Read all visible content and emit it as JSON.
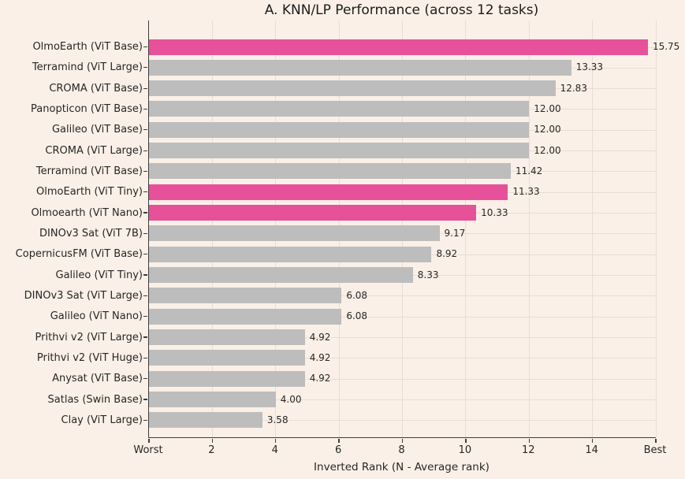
{
  "chart_data": {
    "type": "bar",
    "orientation": "horizontal",
    "title": "A. KNN/LP Performance (across 12 tasks)",
    "xlabel": "Inverted Rank (N - Average rank)",
    "xlim": [
      0,
      16
    ],
    "grid": true,
    "legend": "none",
    "x_ticks": [
      {
        "pos": 0,
        "label": "Worst"
      },
      {
        "pos": 2,
        "label": "2"
      },
      {
        "pos": 4,
        "label": "4"
      },
      {
        "pos": 6,
        "label": "6"
      },
      {
        "pos": 8,
        "label": "8"
      },
      {
        "pos": 10,
        "label": "10"
      },
      {
        "pos": 12,
        "label": "12"
      },
      {
        "pos": 14,
        "label": "14"
      },
      {
        "pos": 16,
        "label": "Best"
      }
    ],
    "bars": [
      {
        "category": "OlmoEarth (ViT Base)",
        "value": 15.75,
        "label": "15.75",
        "highlighted": true
      },
      {
        "category": "Terramind (ViT Large)",
        "value": 13.33,
        "label": "13.33",
        "highlighted": false
      },
      {
        "category": "CROMA (ViT Base)",
        "value": 12.83,
        "label": "12.83",
        "highlighted": false
      },
      {
        "category": "Panopticon (ViT Base)",
        "value": 12.0,
        "label": "12.00",
        "highlighted": false
      },
      {
        "category": "Galileo (ViT Base)",
        "value": 12.0,
        "label": "12.00",
        "highlighted": false
      },
      {
        "category": "CROMA (ViT Large)",
        "value": 12.0,
        "label": "12.00",
        "highlighted": false
      },
      {
        "category": "Terramind (ViT Base)",
        "value": 11.42,
        "label": "11.42",
        "highlighted": false
      },
      {
        "category": "OlmoEarth (ViT Tiny)",
        "value": 11.33,
        "label": "11.33",
        "highlighted": true
      },
      {
        "category": "Olmoearth (ViT Nano)",
        "value": 10.33,
        "label": "10.33",
        "highlighted": true
      },
      {
        "category": "DINOv3 Sat (ViT 7B)",
        "value": 9.17,
        "label": "9.17",
        "highlighted": false
      },
      {
        "category": "CopernicusFM (ViT Base)",
        "value": 8.92,
        "label": "8.92",
        "highlighted": false
      },
      {
        "category": "Galileo (ViT Tiny)",
        "value": 8.33,
        "label": "8.33",
        "highlighted": false
      },
      {
        "category": "DINOv3 Sat (ViT Large)",
        "value": 6.08,
        "label": "6.08",
        "highlighted": false
      },
      {
        "category": "Galileo (ViT Nano)",
        "value": 6.08,
        "label": "6.08",
        "highlighted": false
      },
      {
        "category": "Prithvi v2 (ViT Large)",
        "value": 4.92,
        "label": "4.92",
        "highlighted": false
      },
      {
        "category": "Prithvi v2 (ViT Huge)",
        "value": 4.92,
        "label": "4.92",
        "highlighted": false
      },
      {
        "category": "Anysat (ViT Base)",
        "value": 4.92,
        "label": "4.92",
        "highlighted": false
      },
      {
        "category": "Satlas (Swin Base)",
        "value": 4.0,
        "label": "4.00",
        "highlighted": false
      },
      {
        "category": "Clay (ViT Large)",
        "value": 3.58,
        "label": "3.58",
        "highlighted": false
      }
    ],
    "colors": {
      "highlight": "#e6519a",
      "default": "#bdbdbd",
      "background": "#faf0e7",
      "grid": "#e8ddd4",
      "axis": "#3d3d3d",
      "text": "#262626"
    }
  }
}
